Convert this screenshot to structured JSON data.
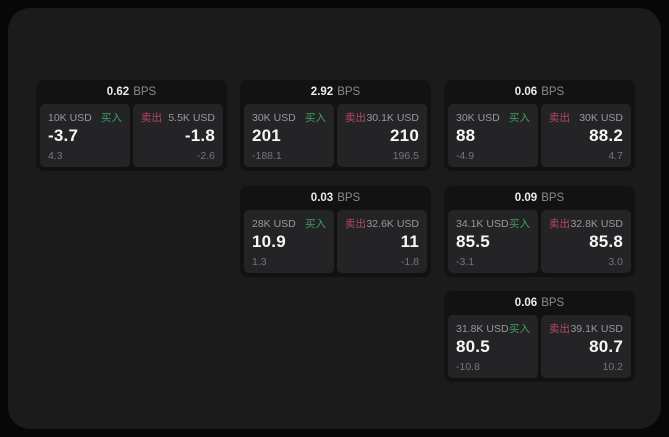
{
  "page": {
    "background": "#070708",
    "panel_bg": "#1b1b1c",
    "card_bg": "#121213",
    "pane_bg": "#242426",
    "buy_color": "#3f9f62",
    "sell_color": "#b5485f"
  },
  "labels": {
    "bps": "BPS",
    "buy": "买入",
    "sell": "卖出"
  },
  "cards": [
    {
      "bps": "0.62",
      "buy": {
        "amount": "10K USD",
        "value": "-3.7",
        "delta": "4.3"
      },
      "sell": {
        "amount": "5.5K USD",
        "value": "-1.8",
        "delta": "-2.6"
      }
    },
    {
      "bps": "2.92",
      "buy": {
        "amount": "30K USD",
        "value": "201",
        "delta": "-188.1"
      },
      "sell": {
        "amount": "30.1K USD",
        "value": "210",
        "delta": "196.5"
      }
    },
    {
      "bps": "0.06",
      "buy": {
        "amount": "30K USD",
        "value": "88",
        "delta": "-4.9"
      },
      "sell": {
        "amount": "30K USD",
        "value": "88.2",
        "delta": "4.7"
      }
    },
    {
      "bps": "0.03",
      "buy": {
        "amount": "28K USD",
        "value": "10.9",
        "delta": "1.3"
      },
      "sell": {
        "amount": "32.6K USD",
        "value": "11",
        "delta": "-1.8"
      }
    },
    {
      "bps": "0.09",
      "buy": {
        "amount": "34.1K USD",
        "value": "85.5",
        "delta": "-3.1"
      },
      "sell": {
        "amount": "32.8K USD",
        "value": "85.8",
        "delta": "3.0"
      }
    },
    {
      "bps": "0.06",
      "buy": {
        "amount": "31.8K USD",
        "value": "80.5",
        "delta": "-10.8"
      },
      "sell": {
        "amount": "39.1K USD",
        "value": "80.7",
        "delta": "10.2"
      }
    }
  ]
}
